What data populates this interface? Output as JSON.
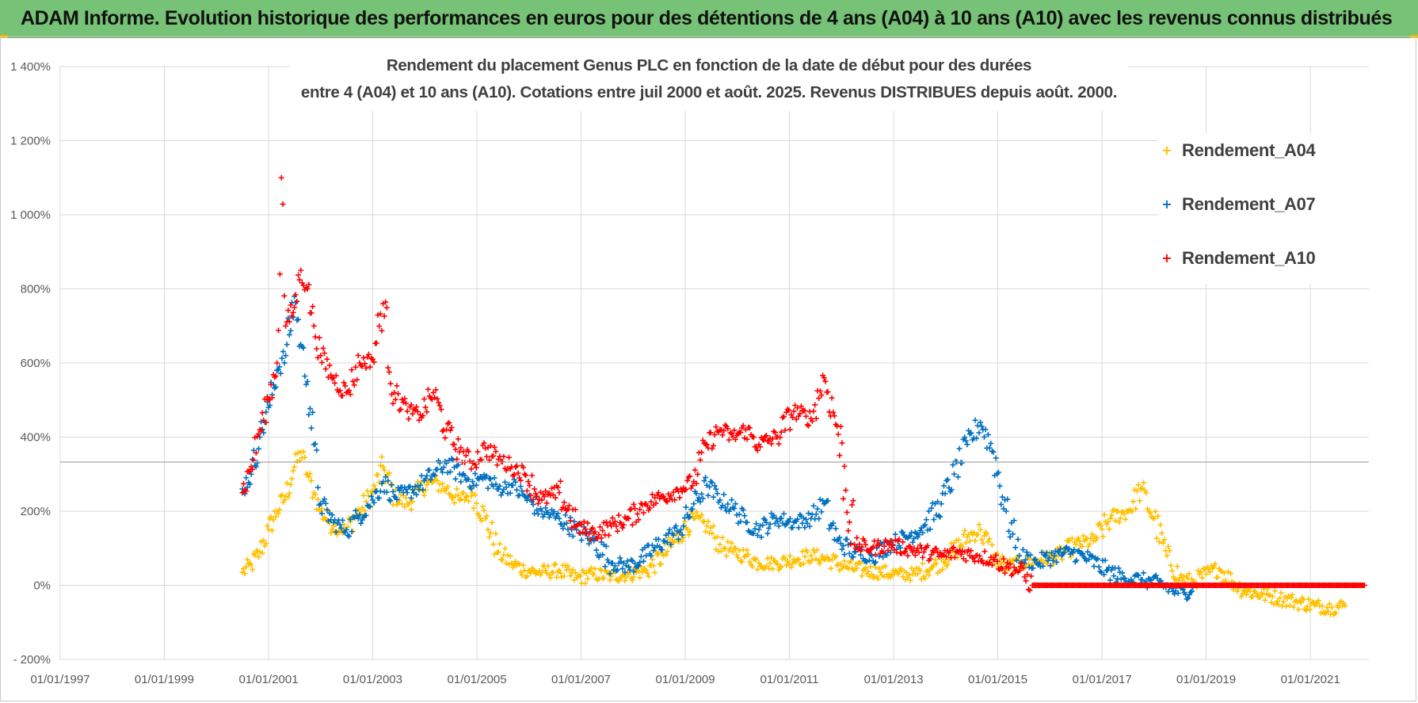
{
  "header": {
    "title": "ADAM Informe. Evolution historique des performances en euros pour des détentions de 4 ans (A04) à 10 ans (A10) avec les revenus connus distribués"
  },
  "colors": {
    "header_bg": "#76c276",
    "A04": "#ffc000",
    "A07": "#0070c0",
    "A10": "#ff0000",
    "grid": "#d9d9d9"
  },
  "chart_data": {
    "type": "scatter",
    "title_lines": [
      "Rendement du placement Genus PLC en fonction de la date de début pour des durées",
      "entre 4 (A04) et 10 ans (A10). Cotations entre juil 2000 et août. 2025. Revenus DISTRIBUES depuis août. 2000."
    ],
    "xlabel": "",
    "ylabel": "",
    "x_ticks": [
      "01/01/1997",
      "01/01/1999",
      "01/01/2001",
      "01/01/2003",
      "01/01/2005",
      "01/01/2007",
      "01/01/2009",
      "01/01/2011",
      "01/01/2013",
      "01/01/2015",
      "01/01/2017",
      "01/01/2019",
      "01/01/2021"
    ],
    "y_ticks": [
      -200,
      0,
      200,
      400,
      600,
      800,
      1000,
      1200,
      1400
    ],
    "y_tick_labels": [
      "- 200%",
      "0%",
      "200%",
      "400%",
      "600%",
      "800%",
      "1 000%",
      "1 200%",
      "1 400%"
    ],
    "xlim": [
      "1997-01-01",
      "2022-02-15"
    ],
    "ylim": [
      -200,
      1400
    ],
    "grid": true,
    "legend_position": "top-right",
    "series": [
      {
        "name": "Rendement_A04",
        "color": "#ffc000",
        "points": [
          [
            "2000-07-01",
            35
          ],
          [
            "2000-09-01",
            55
          ],
          [
            "2000-11-01",
            90
          ],
          [
            "2001-01-01",
            150
          ],
          [
            "2001-03-01",
            200
          ],
          [
            "2001-05-01",
            240
          ],
          [
            "2001-07-01",
            320
          ],
          [
            "2001-08-15",
            360
          ],
          [
            "2001-10-01",
            300
          ],
          [
            "2001-11-15",
            250
          ],
          [
            "2002-01-01",
            200
          ],
          [
            "2002-04-01",
            160
          ],
          [
            "2002-07-01",
            150
          ],
          [
            "2002-10-01",
            200
          ],
          [
            "2003-01-01",
            250
          ],
          [
            "2003-03-15",
            320
          ],
          [
            "2003-06-01",
            240
          ],
          [
            "2003-09-01",
            220
          ],
          [
            "2003-12-01",
            260
          ],
          [
            "2004-03-01",
            280
          ],
          [
            "2004-06-01",
            260
          ],
          [
            "2004-09-01",
            230
          ],
          [
            "2004-12-01",
            250
          ],
          [
            "2005-03-01",
            180
          ],
          [
            "2005-06-01",
            90
          ],
          [
            "2005-09-01",
            60
          ],
          [
            "2005-12-01",
            40
          ],
          [
            "2006-04-01",
            35
          ],
          [
            "2006-08-01",
            40
          ],
          [
            "2006-12-01",
            20
          ],
          [
            "2007-04-01",
            30
          ],
          [
            "2007-08-01",
            25
          ],
          [
            "2007-12-01",
            30
          ],
          [
            "2008-04-01",
            40
          ],
          [
            "2008-08-01",
            80
          ],
          [
            "2008-12-01",
            140
          ],
          [
            "2009-03-01",
            180
          ],
          [
            "2009-06-01",
            160
          ],
          [
            "2009-09-01",
            110
          ],
          [
            "2009-12-01",
            90
          ],
          [
            "2010-03-01",
            80
          ],
          [
            "2010-06-01",
            60
          ],
          [
            "2010-10-01",
            60
          ],
          [
            "2011-02-01",
            70
          ],
          [
            "2011-06-01",
            80
          ],
          [
            "2011-10-01",
            70
          ],
          [
            "2012-02-01",
            50
          ],
          [
            "2012-06-01",
            40
          ],
          [
            "2012-10-01",
            35
          ],
          [
            "2013-02-01",
            30
          ],
          [
            "2013-06-01",
            30
          ],
          [
            "2013-10-01",
            50
          ],
          [
            "2014-02-01",
            80
          ],
          [
            "2014-06-01",
            130
          ],
          [
            "2014-09-01",
            150
          ],
          [
            "2014-12-01",
            80
          ],
          [
            "2015-03-01",
            50
          ],
          [
            "2015-07-01",
            60
          ],
          [
            "2015-11-01",
            70
          ],
          [
            "2016-03-01",
            80
          ],
          [
            "2016-07-01",
            110
          ],
          [
            "2016-11-01",
            120
          ],
          [
            "2017-03-01",
            180
          ],
          [
            "2017-07-01",
            200
          ],
          [
            "2017-10-01",
            260
          ],
          [
            "2018-01-01",
            180
          ],
          [
            "2018-04-01",
            80
          ],
          [
            "2018-07-01",
            20
          ],
          [
            "2018-10-01",
            10
          ],
          [
            "2019-01-01",
            30
          ],
          [
            "2019-04-01",
            45
          ],
          [
            "2019-07-01",
            10
          ],
          [
            "2019-10-01",
            -15
          ],
          [
            "2020-02-01",
            -25
          ],
          [
            "2020-06-01",
            -35
          ],
          [
            "2020-10-01",
            -45
          ],
          [
            "2021-02-01",
            -55
          ],
          [
            "2021-06-01",
            -60
          ],
          [
            "2021-09-01",
            -55
          ]
        ]
      },
      {
        "name": "Rendement_A07",
        "color": "#0070c0",
        "points": [
          [
            "2000-07-01",
            260
          ],
          [
            "2000-09-01",
            300
          ],
          [
            "2000-11-01",
            400
          ],
          [
            "2001-01-01",
            480
          ],
          [
            "2001-03-01",
            580
          ],
          [
            "2001-05-01",
            620
          ],
          [
            "2001-07-01",
            780
          ],
          [
            "2001-08-15",
            650
          ],
          [
            "2001-10-01",
            550
          ],
          [
            "2001-11-15",
            380
          ],
          [
            "2002-01-01",
            220
          ],
          [
            "2002-04-01",
            170
          ],
          [
            "2002-07-01",
            150
          ],
          [
            "2002-10-01",
            190
          ],
          [
            "2003-01-01",
            230
          ],
          [
            "2003-03-15",
            280
          ],
          [
            "2003-06-01",
            240
          ],
          [
            "2003-09-01",
            250
          ],
          [
            "2003-12-01",
            270
          ],
          [
            "2004-03-01",
            300
          ],
          [
            "2004-06-01",
            330
          ],
          [
            "2004-09-01",
            300
          ],
          [
            "2004-12-01",
            280
          ],
          [
            "2005-03-01",
            290
          ],
          [
            "2005-06-01",
            260
          ],
          [
            "2005-09-01",
            270
          ],
          [
            "2005-12-01",
            240
          ],
          [
            "2006-04-01",
            200
          ],
          [
            "2006-08-01",
            180
          ],
          [
            "2006-12-01",
            150
          ],
          [
            "2007-04-01",
            120
          ],
          [
            "2007-08-01",
            60
          ],
          [
            "2007-12-01",
            50
          ],
          [
            "2008-04-01",
            80
          ],
          [
            "2008-08-01",
            120
          ],
          [
            "2008-12-01",
            150
          ],
          [
            "2009-03-01",
            220
          ],
          [
            "2009-06-01",
            270
          ],
          [
            "2009-09-01",
            230
          ],
          [
            "2009-12-01",
            210
          ],
          [
            "2010-03-01",
            170
          ],
          [
            "2010-06-01",
            150
          ],
          [
            "2010-10-01",
            180
          ],
          [
            "2011-02-01",
            170
          ],
          [
            "2011-06-01",
            180
          ],
          [
            "2011-09-01",
            220
          ],
          [
            "2011-12-01",
            120
          ],
          [
            "2012-04-01",
            90
          ],
          [
            "2012-08-01",
            80
          ],
          [
            "2012-12-01",
            110
          ],
          [
            "2013-04-01",
            130
          ],
          [
            "2013-08-01",
            160
          ],
          [
            "2013-12-01",
            220
          ],
          [
            "2014-03-01",
            300
          ],
          [
            "2014-06-01",
            380
          ],
          [
            "2014-09-01",
            440
          ],
          [
            "2014-12-01",
            360
          ],
          [
            "2015-03-01",
            200
          ],
          [
            "2015-06-01",
            80
          ],
          [
            "2015-10-01",
            60
          ],
          [
            "2016-02-01",
            80
          ],
          [
            "2016-06-01",
            90
          ],
          [
            "2016-10-01",
            70
          ],
          [
            "2017-02-01",
            40
          ],
          [
            "2017-06-01",
            20
          ],
          [
            "2017-10-01",
            15
          ],
          [
            "2018-02-01",
            5
          ],
          [
            "2018-06-01",
            -15
          ],
          [
            "2018-08-01",
            -20
          ],
          [
            "2018-10-01",
            -5
          ]
        ]
      },
      {
        "name": "Rendement_A10",
        "color": "#ff0000",
        "points": [
          [
            "2000-07-01",
            250
          ],
          [
            "2000-09-01",
            320
          ],
          [
            "2000-11-01",
            420
          ],
          [
            "2001-01-01",
            500
          ],
          [
            "2001-03-01",
            600
          ],
          [
            "2001-04-01",
            1100
          ],
          [
            "2001-05-01",
            700
          ],
          [
            "2001-07-01",
            750
          ],
          [
            "2001-08-15",
            850
          ],
          [
            "2001-10-01",
            800
          ],
          [
            "2001-11-15",
            700
          ],
          [
            "2002-01-01",
            620
          ],
          [
            "2002-04-01",
            560
          ],
          [
            "2002-07-01",
            520
          ],
          [
            "2002-10-01",
            600
          ],
          [
            "2003-01-01",
            610
          ],
          [
            "2003-03-15",
            760
          ],
          [
            "2003-06-01",
            520
          ],
          [
            "2003-09-01",
            470
          ],
          [
            "2003-12-01",
            460
          ],
          [
            "2004-03-01",
            520
          ],
          [
            "2004-06-01",
            420
          ],
          [
            "2004-09-01",
            360
          ],
          [
            "2004-12-01",
            330
          ],
          [
            "2005-03-01",
            370
          ],
          [
            "2005-06-01",
            340
          ],
          [
            "2005-09-01",
            320
          ],
          [
            "2005-12-01",
            300
          ],
          [
            "2006-04-01",
            230
          ],
          [
            "2006-08-01",
            250
          ],
          [
            "2006-12-01",
            160
          ],
          [
            "2007-04-01",
            140
          ],
          [
            "2007-08-01",
            160
          ],
          [
            "2007-12-01",
            180
          ],
          [
            "2008-04-01",
            220
          ],
          [
            "2008-08-01",
            240
          ],
          [
            "2008-12-01",
            260
          ],
          [
            "2009-03-01",
            280
          ],
          [
            "2009-06-01",
            380
          ],
          [
            "2009-09-01",
            420
          ],
          [
            "2009-12-01",
            400
          ],
          [
            "2010-03-01",
            420
          ],
          [
            "2010-06-01",
            380
          ],
          [
            "2010-10-01",
            400
          ],
          [
            "2011-02-01",
            470
          ],
          [
            "2011-06-01",
            450
          ],
          [
            "2011-09-01",
            560
          ],
          [
            "2011-12-01",
            430
          ],
          [
            "2012-04-01",
            110
          ],
          [
            "2012-08-01",
            100
          ],
          [
            "2012-12-01",
            110
          ],
          [
            "2013-04-01",
            100
          ],
          [
            "2013-08-01",
            90
          ],
          [
            "2013-12-01",
            80
          ],
          [
            "2014-04-01",
            90
          ],
          [
            "2014-08-01",
            80
          ],
          [
            "2014-12-01",
            70
          ],
          [
            "2015-03-01",
            50
          ],
          [
            "2015-06-01",
            40
          ],
          [
            "2015-09-01",
            0
          ],
          [
            "2016-06-01",
            0
          ],
          [
            "2017-06-01",
            0
          ],
          [
            "2018-06-01",
            0
          ],
          [
            "2019-06-01",
            0
          ],
          [
            "2020-06-01",
            0
          ],
          [
            "2021-06-01",
            0
          ],
          [
            "2022-01-15",
            0
          ]
        ]
      }
    ]
  }
}
